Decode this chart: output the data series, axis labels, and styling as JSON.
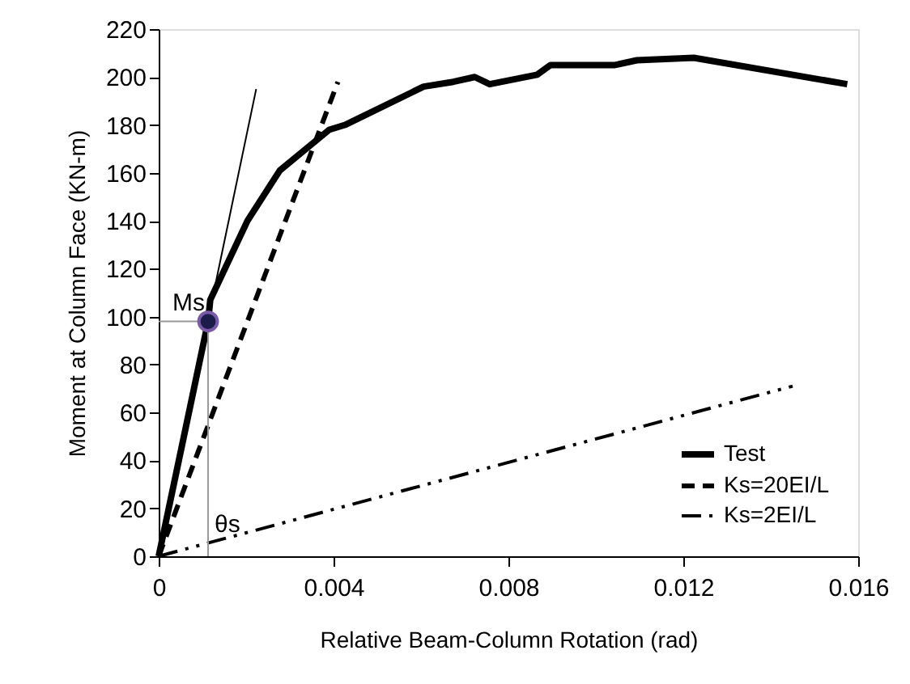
{
  "chart_data": {
    "type": "line",
    "xlabel": "Relative Beam-Column Rotation (rad)",
    "ylabel": "Moment  at Column Face (KN-m)",
    "xlim": [
      0,
      0.016
    ],
    "xticks": [
      0,
      0.004,
      0.008,
      0.012,
      0.016
    ],
    "ylim": [
      0,
      220
    ],
    "yticks": [
      0,
      20,
      40,
      60,
      80,
      100,
      120,
      140,
      160,
      180,
      200,
      220
    ],
    "grid": false,
    "legend": "bottom right",
    "marker": "none",
    "series": [
      {
        "name": "Test",
        "color": "#000000",
        "line_style": "solid",
        "x": [
          0,
          0.00113,
          0.00118,
          0.00203,
          0.00277,
          0.0039,
          0.00426,
          0.00606,
          0.00674,
          0.00723,
          0.00757,
          0.00866,
          0.00896,
          0.01044,
          0.01094,
          0.01224,
          0.01575
        ],
        "values": [
          0,
          98,
          107,
          140,
          161,
          178,
          180,
          196,
          198,
          200,
          197,
          201,
          205,
          205,
          207,
          208,
          197
        ]
      },
      {
        "name": "Ks=20EI/L",
        "color": "#000000",
        "line_style": "dashed",
        "x": [
          0,
          0.0041
        ],
        "values": [
          0,
          198
        ]
      },
      {
        "name": "Ks=2EI/L",
        "color": "#000000",
        "line_style": "dashdot",
        "x": [
          0,
          0.0145
        ],
        "values": [
          0,
          71
        ]
      },
      {
        "color": "#000000",
        "line_style": "solid",
        "x": [
          0,
          0.00223
        ],
        "values": [
          0,
          195
        ]
      },
      {
        "color": "#999999",
        "line_style": "solid",
        "x": [
          0,
          0.00113
        ],
        "values": [
          98,
          98
        ]
      },
      {
        "color": "#999999",
        "line_style": "solid",
        "x": [
          0.00113,
          0.00113
        ],
        "values": [
          98,
          0
        ]
      },
      {
        "type": "scatter",
        "marker": "circle",
        "color": "#1c1c4a",
        "x": [
          0.00113
        ],
        "values": [
          98
        ]
      }
    ],
    "annotations": [
      {
        "text": "Ms",
        "x": 0.00113,
        "y": 98
      },
      {
        "text": "θs",
        "x": 0.00113,
        "y": 0
      }
    ]
  }
}
